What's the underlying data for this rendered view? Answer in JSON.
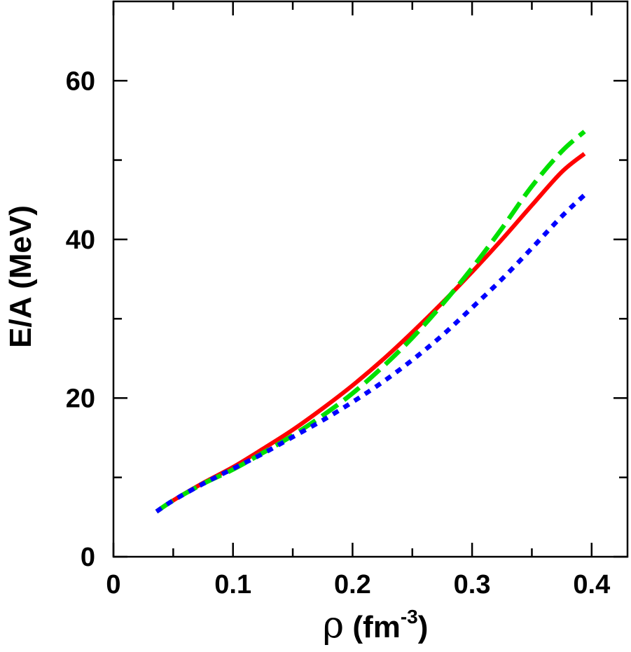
{
  "chart_data": {
    "type": "line",
    "title": "",
    "xlabel": {
      "symbol": "ρ",
      "text": " (fm",
      "sup": "-3",
      "close": ")"
    },
    "ylabel": "E/A (MeV)",
    "xlim": [
      0,
      0.43
    ],
    "ylim": [
      0,
      70
    ],
    "x_ticks_major": [
      0,
      0.1,
      0.2,
      0.3,
      0.4
    ],
    "x_tick_labels": [
      "0",
      "0.1",
      "0.2",
      "0.3",
      "0.4"
    ],
    "x_ticks_minor": [
      0.05,
      0.15,
      0.25,
      0.35
    ],
    "y_ticks_major": [
      0,
      20,
      40,
      60
    ],
    "y_tick_labels": [
      "0",
      "20",
      "40",
      "60"
    ],
    "y_ticks_minor": [
      10,
      30,
      50
    ],
    "grid": false,
    "series": [
      {
        "name": "solid",
        "style": "solid",
        "color": "#ff0000",
        "x": [
          0.036,
          0.05,
          0.075,
          0.1,
          0.125,
          0.15,
          0.175,
          0.2,
          0.225,
          0.25,
          0.275,
          0.3,
          0.325,
          0.35,
          0.375,
          0.394
        ],
        "y": [
          5.7,
          7.1,
          9.3,
          11.3,
          13.6,
          16.0,
          18.7,
          21.6,
          24.8,
          28.3,
          32.0,
          35.9,
          40.0,
          44.3,
          48.5,
          50.8
        ]
      },
      {
        "name": "dashed",
        "style": "dashed",
        "color": "#00e000",
        "x": [
          0.036,
          0.05,
          0.075,
          0.1,
          0.125,
          0.15,
          0.175,
          0.2,
          0.225,
          0.25,
          0.275,
          0.3,
          0.325,
          0.35,
          0.375,
          0.394
        ],
        "y": [
          5.7,
          7.1,
          9.2,
          11.0,
          13.1,
          15.3,
          17.8,
          20.6,
          23.9,
          27.6,
          31.8,
          36.4,
          41.4,
          46.7,
          51.1,
          53.6
        ]
      },
      {
        "name": "dotted",
        "style": "dotted",
        "color": "#0000ff",
        "x": [
          0.036,
          0.05,
          0.075,
          0.1,
          0.125,
          0.15,
          0.175,
          0.2,
          0.225,
          0.25,
          0.275,
          0.3,
          0.325,
          0.35,
          0.375,
          0.394
        ],
        "y": [
          5.7,
          7.1,
          9.2,
          11.1,
          13.0,
          15.1,
          17.2,
          19.5,
          22.0,
          24.8,
          27.9,
          31.4,
          35.0,
          38.9,
          42.9,
          45.6
        ]
      }
    ]
  }
}
